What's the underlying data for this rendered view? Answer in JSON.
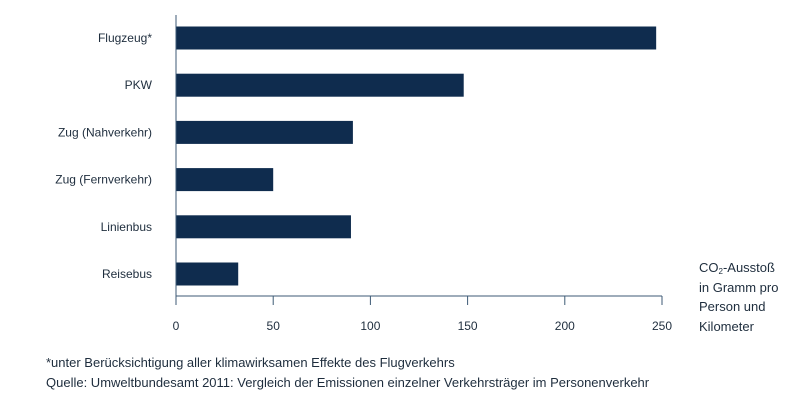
{
  "chart_data": {
    "type": "bar",
    "orientation": "horizontal",
    "categories": [
      "Flugzeug*",
      "PKW",
      "Zug (Nahverkehr)",
      "Zug (Fernverkehr)",
      "Linienbus",
      "Reisebus"
    ],
    "values": [
      247,
      148,
      91,
      50,
      90,
      32
    ],
    "xticks": [
      "0",
      "50",
      "100",
      "150",
      "200",
      "250"
    ],
    "xlim": [
      0,
      250
    ],
    "grid": false,
    "axis_title": {
      "prefix": "CO",
      "subscript": "2",
      "suffix": "-Ausstoß",
      "lines": [
        "in Gramm pro",
        "Person und",
        "Kilometer"
      ]
    },
    "bar_color": "#0f2c4e"
  },
  "notes": {
    "footnote": "*unter Berücksichtigung aller klimawirksamen Effekte des Flugverkehrs",
    "source": "Quelle: Umweltbundesamt 2011: Vergleich der Emissionen einzelner Verkehrsträger im Personenverkehr"
  }
}
